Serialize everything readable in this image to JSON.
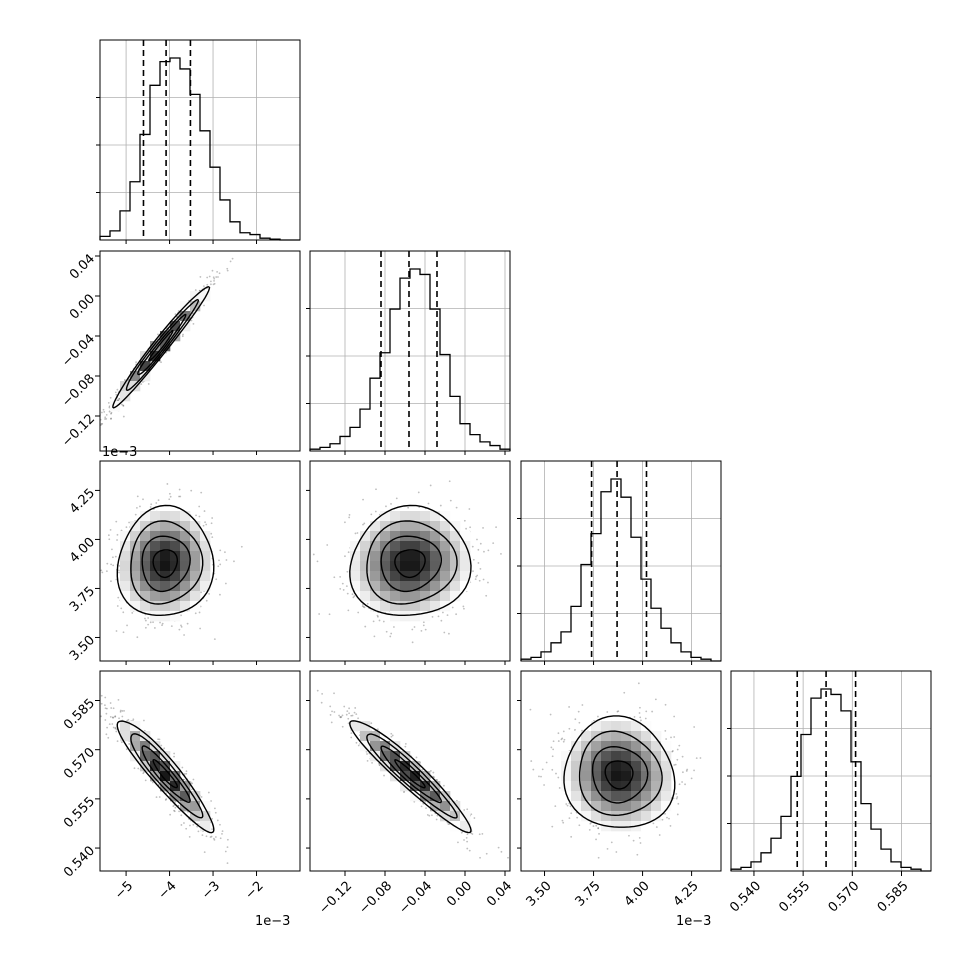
{
  "chart_data": {
    "type": "corner",
    "grid": true,
    "parameters": [
      {
        "range": [
          -0.0056,
          -0.001
        ],
        "ticks": [
          -0.005,
          -0.004,
          -0.003,
          -0.002
        ],
        "tick_labels": [
          "−5",
          "−4",
          "−3",
          "−2"
        ],
        "offset_label": "1e−3",
        "quantiles": [
          -0.0046,
          -0.00408,
          -0.00352
        ],
        "hist": [
          0.02,
          0.05,
          0.16,
          0.32,
          0.58,
          0.85,
          0.98,
          1.0,
          0.94,
          0.8,
          0.6,
          0.4,
          0.22,
          0.1,
          0.04,
          0.03,
          0.01,
          0.005,
          0.0,
          0.0
        ]
      },
      {
        "range": [
          -0.155,
          0.045
        ],
        "ticks": [
          -0.12,
          -0.08,
          -0.04,
          0.0,
          0.04
        ],
        "tick_labels": [
          "−0.12",
          "−0.08",
          "−0.04",
          "0.00",
          "0.04"
        ],
        "quantiles": [
          -0.084,
          -0.056,
          -0.028
        ],
        "hist": [
          0.01,
          0.02,
          0.04,
          0.08,
          0.13,
          0.23,
          0.4,
          0.54,
          0.78,
          0.95,
          1.0,
          0.97,
          0.78,
          0.53,
          0.3,
          0.15,
          0.09,
          0.05,
          0.03,
          0.01
        ]
      },
      {
        "range": [
          3.38,
          4.4
        ],
        "ticks": [
          3.5,
          3.75,
          4.0,
          4.25
        ],
        "tick_labels": [
          "3.50",
          "3.75",
          "4.00",
          "4.25"
        ],
        "offset_label": "1e−3",
        "quantiles": [
          3.74,
          3.87,
          4.02
        ],
        "hist": [
          0.01,
          0.02,
          0.05,
          0.1,
          0.16,
          0.3,
          0.53,
          0.7,
          0.93,
          1.0,
          0.9,
          0.68,
          0.45,
          0.29,
          0.18,
          0.1,
          0.05,
          0.02,
          0.01,
          0.0
        ]
      },
      {
        "range": [
          0.533,
          0.594
        ],
        "ticks": [
          0.54,
          0.555,
          0.57,
          0.585
        ],
        "tick_labels": [
          "0.540",
          "0.555",
          "0.570",
          "0.585"
        ],
        "quantiles": [
          0.5532,
          0.562,
          0.571
        ],
        "hist": [
          0.01,
          0.02,
          0.05,
          0.1,
          0.18,
          0.3,
          0.52,
          0.75,
          0.95,
          1.0,
          0.97,
          0.88,
          0.6,
          0.37,
          0.23,
          0.12,
          0.05,
          0.02,
          0.01,
          0.0
        ]
      }
    ],
    "pairs": [
      {
        "row": 1,
        "col": 0,
        "center": [
          -0.0042,
          -0.05
        ],
        "sigma": [
          0.00055,
          0.03
        ],
        "rho": 0.98
      },
      {
        "row": 2,
        "col": 0,
        "center": [
          -0.0041,
          3.88
        ],
        "sigma": [
          0.00055,
          0.14
        ],
        "rho": 0.05
      },
      {
        "row": 2,
        "col": 1,
        "center": [
          -0.055,
          3.88
        ],
        "sigma": [
          0.03,
          0.14
        ],
        "rho": 0.05
      },
      {
        "row": 3,
        "col": 0,
        "center": [
          -0.0041,
          0.5625
        ],
        "sigma": [
          0.00055,
          0.0085
        ],
        "rho": -0.93
      },
      {
        "row": 3,
        "col": 1,
        "center": [
          -0.055,
          0.5625
        ],
        "sigma": [
          0.03,
          0.0085
        ],
        "rho": -0.95
      },
      {
        "row": 3,
        "col": 2,
        "center": [
          3.88,
          0.5625
        ],
        "sigma": [
          0.14,
          0.0085
        ],
        "rho": -0.05
      }
    ]
  }
}
